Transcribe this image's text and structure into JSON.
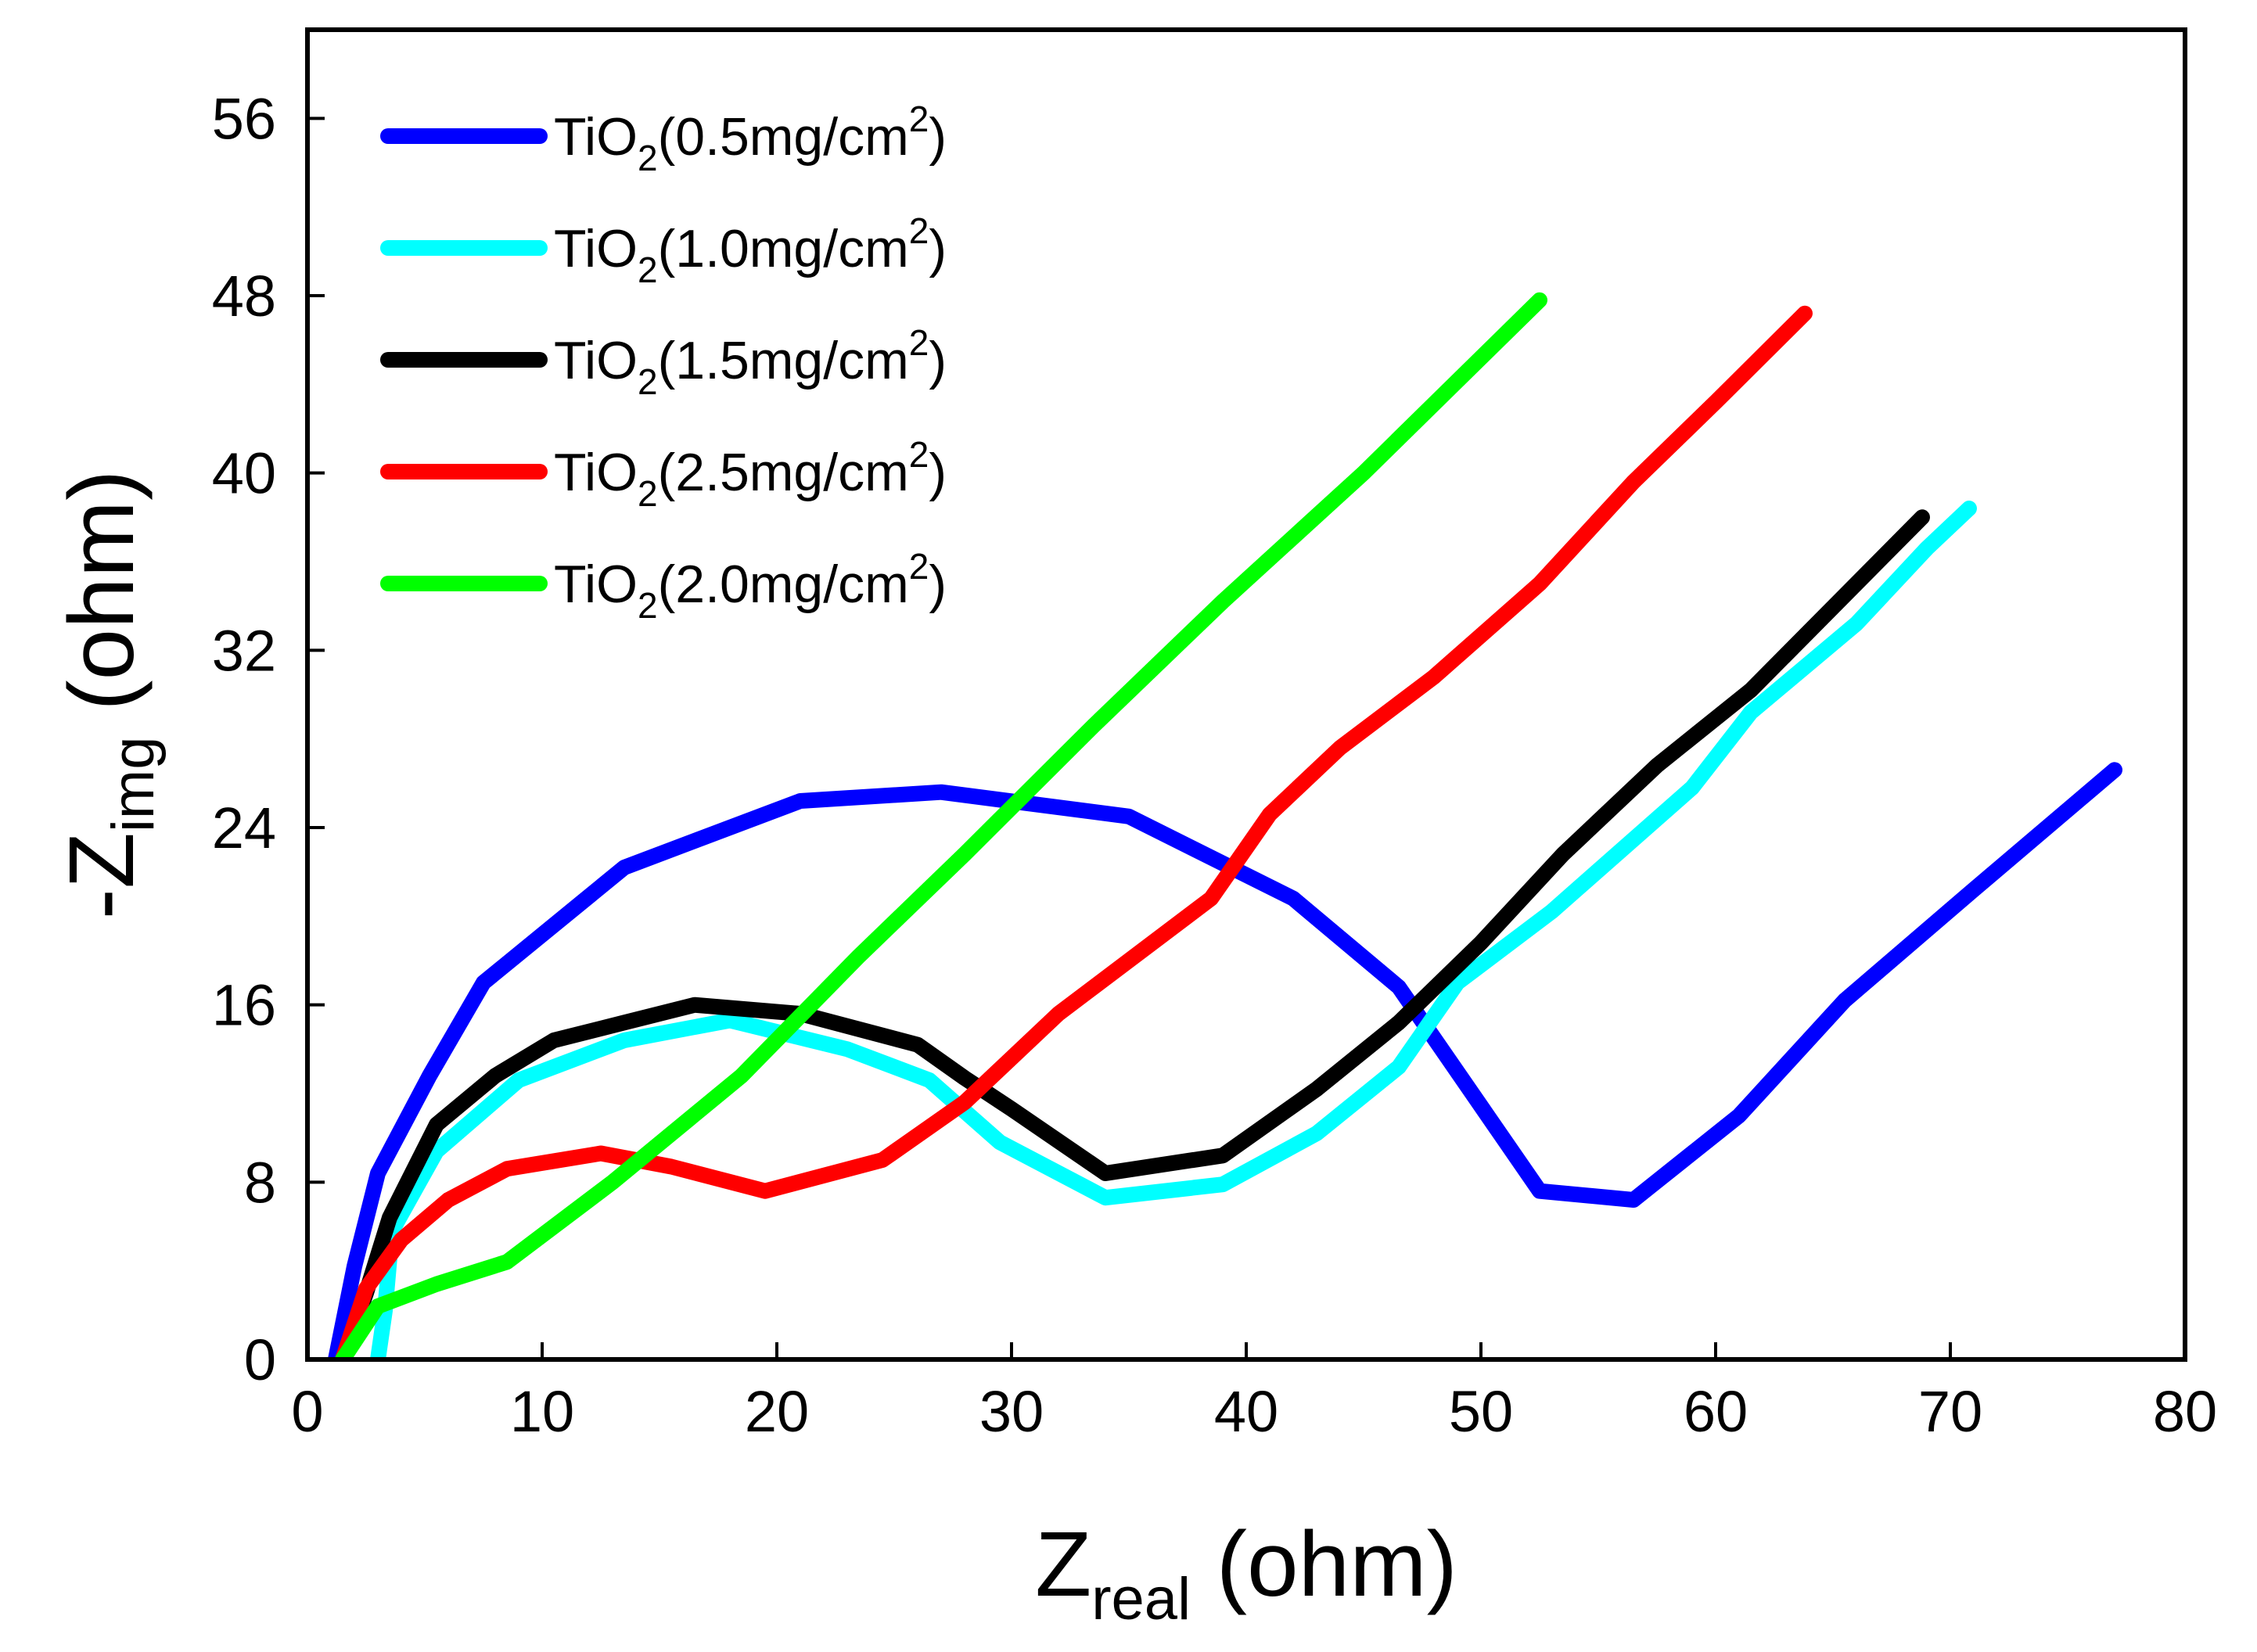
{
  "chart_data": {
    "type": "line",
    "title": "",
    "xlabel": {
      "main": "Z",
      "sub": "real",
      "suffix": " (ohm)"
    },
    "ylabel": {
      "prefix": "-Z",
      "sub": "img",
      "suffix": " (ohm)"
    },
    "xlim": [
      0,
      80
    ],
    "ylim": [
      0,
      60
    ],
    "xticks": [
      0,
      10,
      20,
      30,
      40,
      50,
      60,
      70,
      80
    ],
    "yticks": [
      0,
      8,
      16,
      24,
      32,
      40,
      48,
      56
    ],
    "grid": false,
    "legend_position": "top-left",
    "series": [
      {
        "name": "TiO2(0.5mg/cm2)",
        "legend": {
          "a": "TiO",
          "b": "2",
          "c": "(0.5mg/cm",
          "d": "2",
          "e": ")"
        },
        "color": "#0000ff",
        "points": [
          [
            1.2,
            0
          ],
          [
            2.0,
            4.2
          ],
          [
            3.0,
            8.4
          ],
          [
            5.2,
            12.8
          ],
          [
            7.5,
            17.0
          ],
          [
            13.5,
            22.2
          ],
          [
            21.0,
            25.2
          ],
          [
            27.0,
            25.6
          ],
          [
            35.0,
            24.5
          ],
          [
            42.0,
            20.8
          ],
          [
            46.5,
            16.8
          ],
          [
            49.5,
            12.2
          ],
          [
            52.5,
            7.6
          ],
          [
            56.5,
            7.2
          ],
          [
            61.0,
            11.0
          ],
          [
            65.5,
            16.2
          ],
          [
            71.0,
            21.2
          ],
          [
            77.0,
            26.6
          ]
        ]
      },
      {
        "name": "TiO2(1.0mg/cm2)",
        "legend": {
          "a": "TiO",
          "b": "2",
          "c": "(1.0mg/cm",
          "d": "2",
          "e": ")"
        },
        "color": "#00ffff",
        "points": [
          [
            3.0,
            0
          ],
          [
            3.3,
            2.2
          ],
          [
            3.6,
            5.8
          ],
          [
            5.5,
            9.4
          ],
          [
            9.0,
            12.6
          ],
          [
            13.5,
            14.4
          ],
          [
            18.0,
            15.3
          ],
          [
            23.0,
            14.0
          ],
          [
            26.5,
            12.6
          ],
          [
            29.5,
            9.8
          ],
          [
            34.0,
            7.3
          ],
          [
            39.0,
            7.9
          ],
          [
            43.0,
            10.2
          ],
          [
            46.5,
            13.2
          ],
          [
            49.0,
            17.0
          ],
          [
            53.0,
            20.2
          ],
          [
            59.0,
            25.8
          ],
          [
            61.5,
            29.2
          ],
          [
            66.0,
            33.2
          ],
          [
            69.0,
            36.6
          ],
          [
            70.8,
            38.4
          ]
        ]
      },
      {
        "name": "TiO2(1.5mg/cm2)",
        "legend": {
          "a": "TiO",
          "b": "2",
          "c": "(1.5mg/cm",
          "d": "2",
          "e": ")"
        },
        "color": "#000000",
        "points": [
          [
            1.5,
            0
          ],
          [
            2.5,
            3.0
          ],
          [
            3.5,
            6.4
          ],
          [
            5.5,
            10.6
          ],
          [
            8.0,
            12.8
          ],
          [
            10.5,
            14.4
          ],
          [
            13.5,
            15.2
          ],
          [
            16.5,
            16.0
          ],
          [
            21.0,
            15.6
          ],
          [
            26.0,
            14.2
          ],
          [
            28.0,
            12.7
          ],
          [
            30.0,
            11.3
          ],
          [
            34.0,
            8.4
          ],
          [
            39.0,
            9.2
          ],
          [
            43.0,
            12.2
          ],
          [
            46.5,
            15.2
          ],
          [
            50.0,
            18.8
          ],
          [
            53.5,
            22.8
          ],
          [
            57.5,
            26.8
          ],
          [
            61.5,
            30.2
          ],
          [
            68.8,
            38.0
          ]
        ]
      },
      {
        "name": "TiO2(2.5mg/cm2)",
        "legend": {
          "a": "TiO",
          "b": "2",
          "c": "(2.5mg/cm",
          "d": "2",
          "e": ")"
        },
        "color": "#ff0000",
        "points": [
          [
            1.5,
            0
          ],
          [
            2.5,
            3.2
          ],
          [
            4.0,
            5.4
          ],
          [
            6.0,
            7.2
          ],
          [
            8.5,
            8.6
          ],
          [
            12.5,
            9.3
          ],
          [
            15.5,
            8.7
          ],
          [
            19.5,
            7.6
          ],
          [
            24.5,
            9.0
          ],
          [
            28.0,
            11.6
          ],
          [
            32.0,
            15.6
          ],
          [
            38.5,
            20.8
          ],
          [
            41.0,
            24.6
          ],
          [
            44.0,
            27.6
          ],
          [
            48.0,
            30.8
          ],
          [
            52.5,
            35.0
          ],
          [
            56.5,
            39.6
          ],
          [
            60.0,
            43.2
          ],
          [
            63.8,
            47.2
          ]
        ]
      },
      {
        "name": "TiO2(2.0mg/cm2)",
        "legend": {
          "a": "TiO",
          "b": "2",
          "c": "(2.0mg/cm",
          "d": "2",
          "e": ")"
        },
        "color": "#00ff00",
        "points": [
          [
            1.5,
            0
          ],
          [
            3.0,
            2.4
          ],
          [
            5.5,
            3.4
          ],
          [
            8.5,
            4.4
          ],
          [
            13.0,
            8.0
          ],
          [
            18.5,
            12.8
          ],
          [
            23.5,
            18.2
          ],
          [
            28.0,
            22.8
          ],
          [
            33.5,
            28.6
          ],
          [
            39.0,
            34.2
          ],
          [
            45.0,
            40.0
          ],
          [
            52.5,
            47.8
          ]
        ]
      }
    ]
  }
}
